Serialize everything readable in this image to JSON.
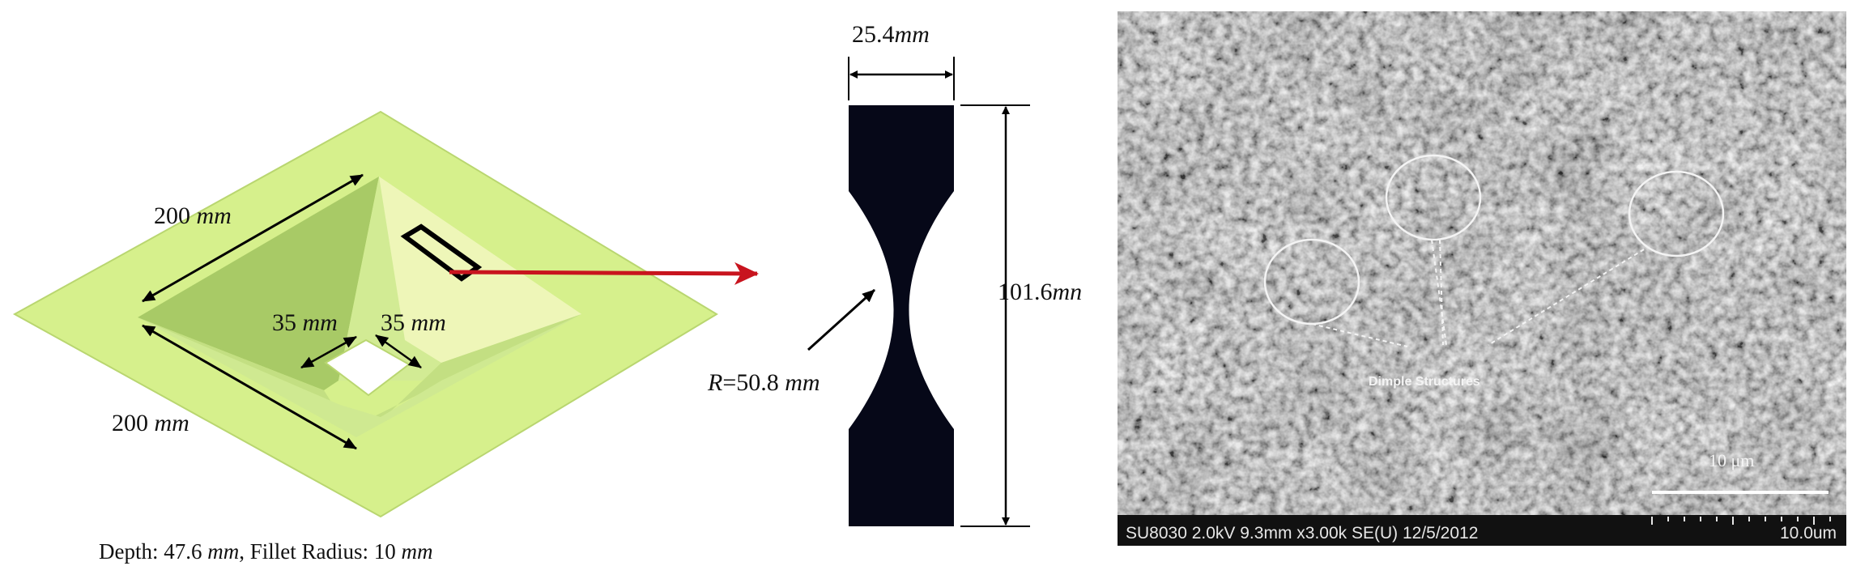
{
  "part_drawing": {
    "outer_width_label_a": "200",
    "outer_width_label_b": "200",
    "unit": "mm",
    "hole_label_a": "35",
    "hole_label_b": "35",
    "caption_depth_prefix": "Depth: 47.6 ",
    "caption_fillet_prefix": ", Fillet Radius: 10 "
  },
  "specimen": {
    "width_label_value": "25.4",
    "width_label_unit": "mm",
    "length_label_value": "101.6",
    "length_label_unit": "mn",
    "radius_prefix": "R",
    "radius_value": "=50.8 ",
    "radius_unit": "mm"
  },
  "sem_image": {
    "annotation": "Dimple Structures",
    "scale_label": "10 μm",
    "info_bar": "SU8030 2.0kV 9.3mm x3.00k SE(U) 12/5/2012",
    "info_scale": "10.0um"
  },
  "colors": {
    "plate": "#d6f08c",
    "plate_edge": "#b9d670",
    "pyramid_left": "#aacb6a",
    "pyramid_right": "#f2f8c0",
    "arrow_red": "#c8141e",
    "specimen_fill": "#060818",
    "sem_background": "#6a6a6a",
    "sem_bar": "#111111"
  }
}
